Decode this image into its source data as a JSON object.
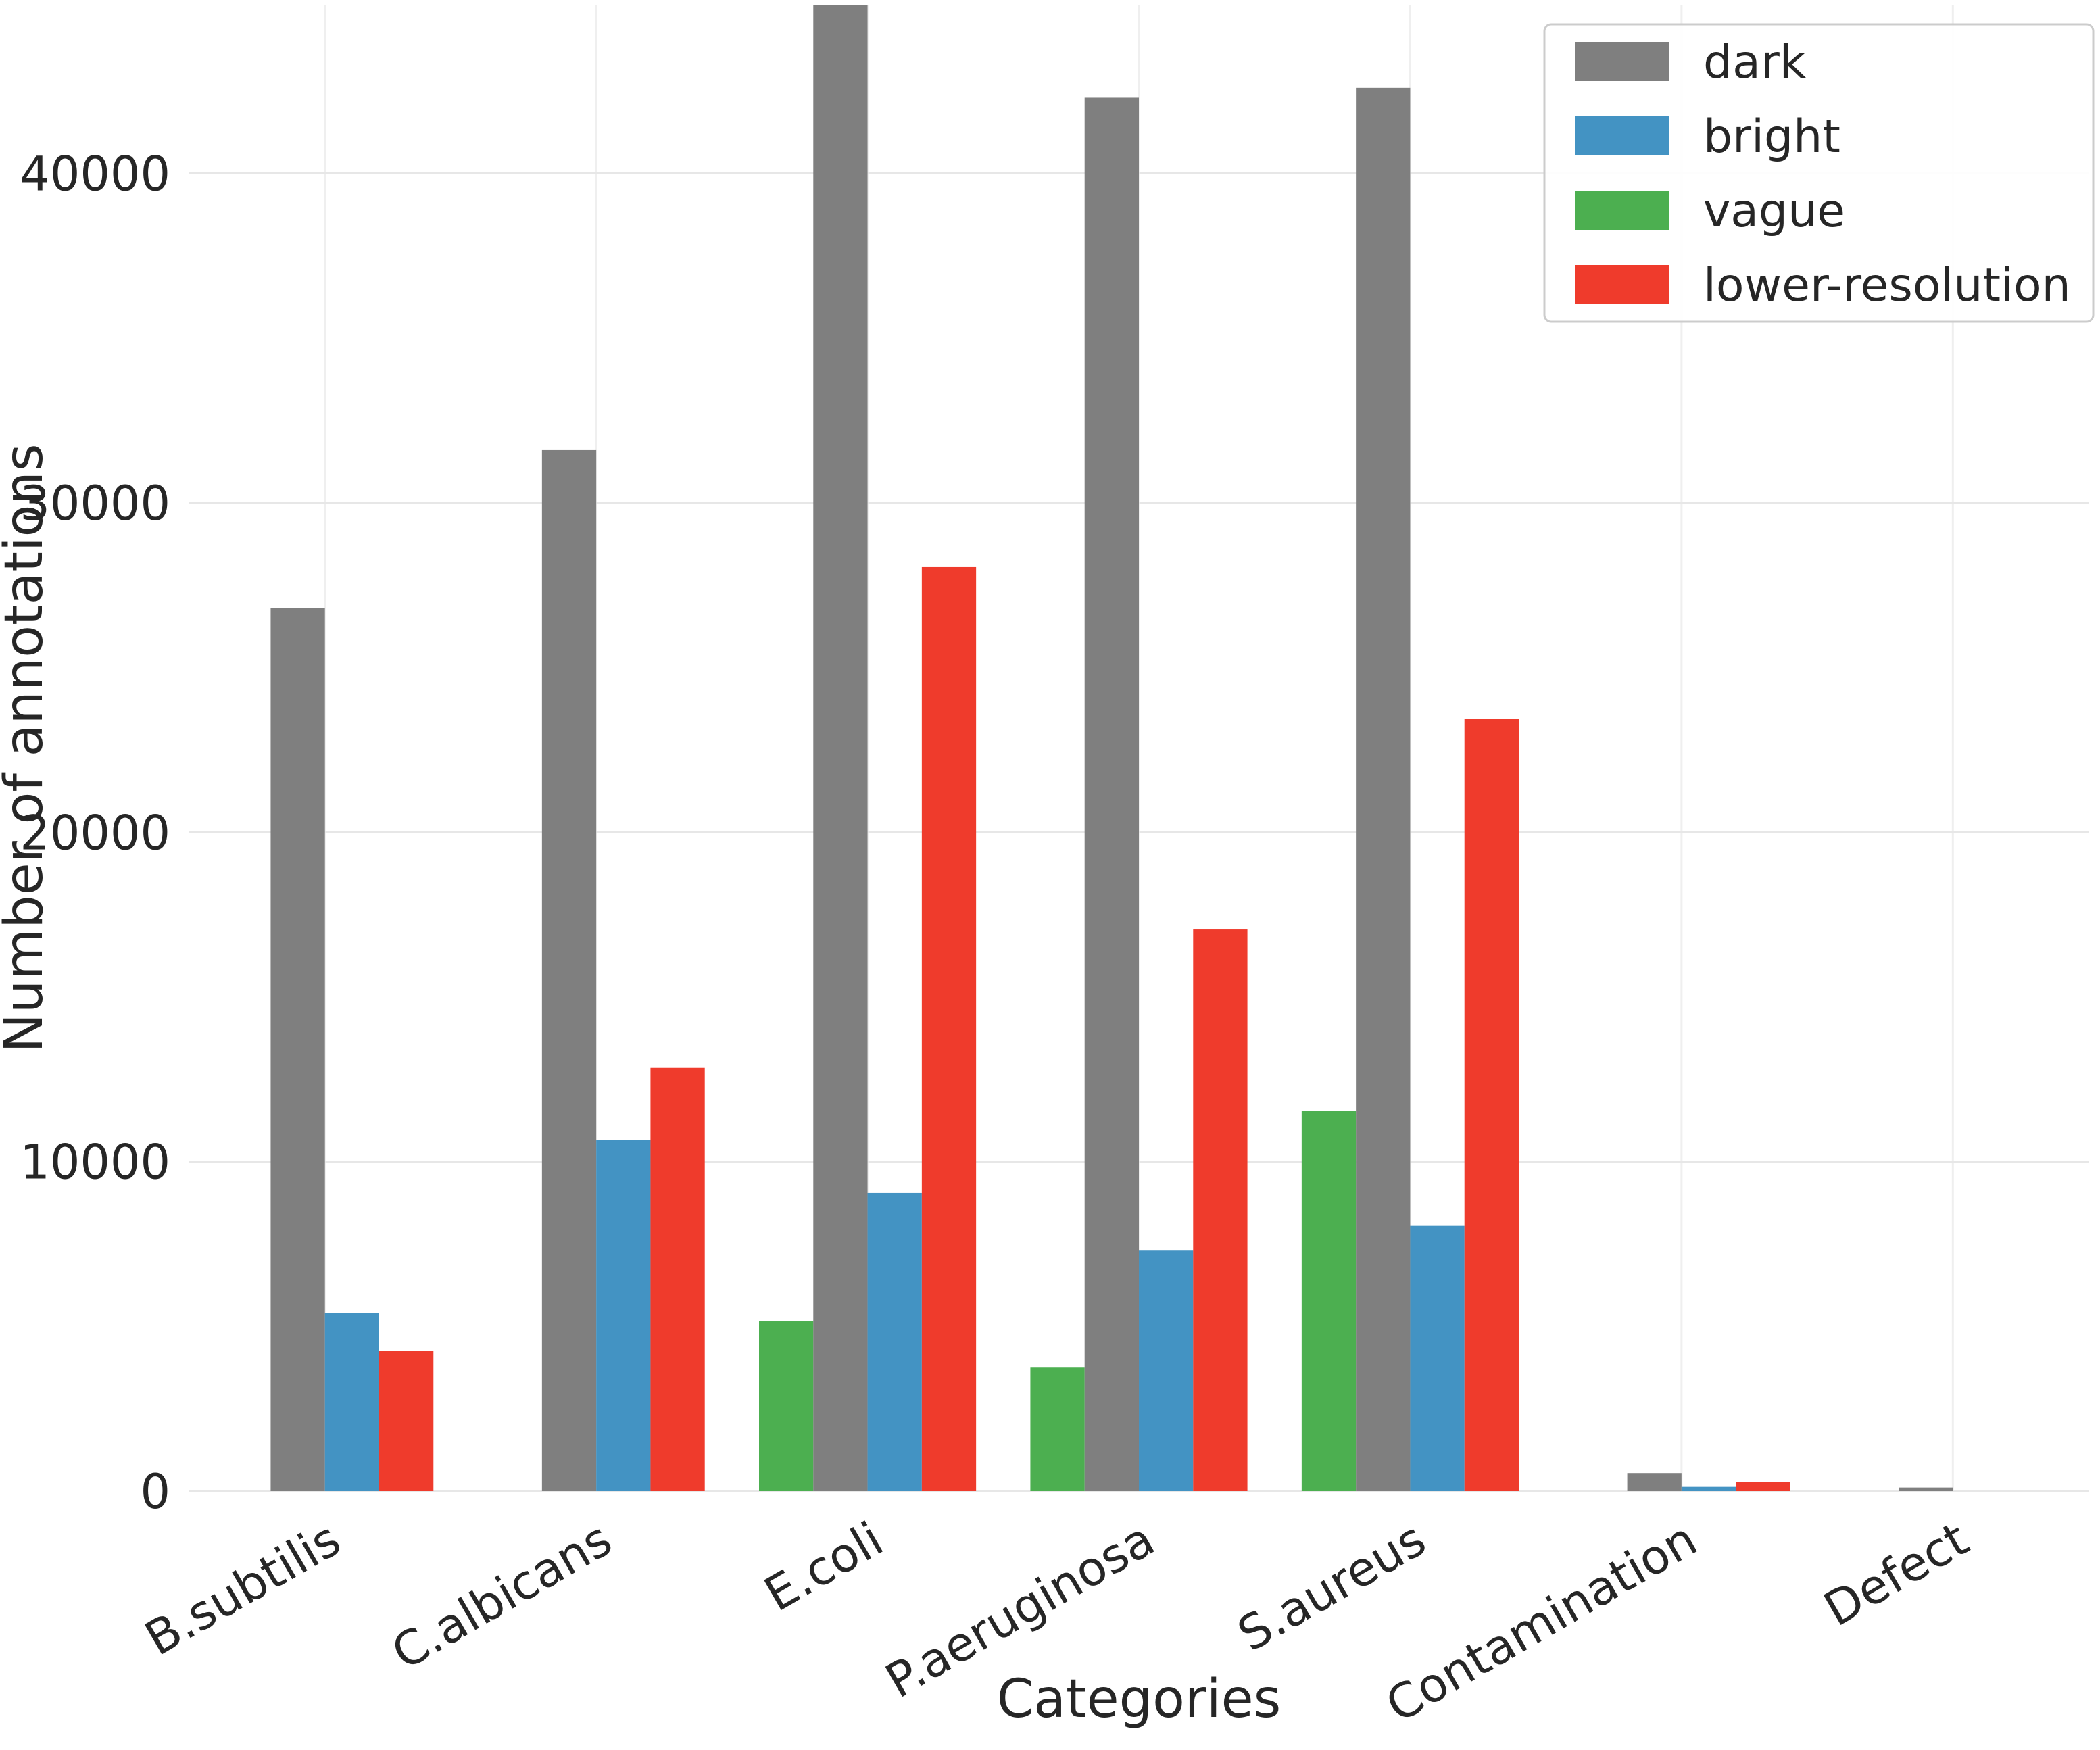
{
  "chart_data": {
    "type": "bar",
    "title": "",
    "xlabel": "Categories",
    "ylabel": "Number of annotations",
    "categories": [
      "B.subtilis",
      "C.albicans",
      "E.coli",
      "P.aeruginosa",
      "S.aureus",
      "Contamination",
      "Defect"
    ],
    "series": [
      {
        "name": "dark",
        "color": "#7f7f7f",
        "values": [
          26800,
          31600,
          45800,
          42300,
          42600,
          550,
          110
        ]
      },
      {
        "name": "bright",
        "color": "#4393c3",
        "values": [
          5400,
          10650,
          9050,
          7300,
          8050,
          130,
          0
        ]
      },
      {
        "name": "vague",
        "color": "#4caf50",
        "values": [
          0,
          0,
          5150,
          3750,
          11550,
          0,
          0
        ]
      },
      {
        "name": "lower-resolution",
        "color": "#ef3b2c",
        "values": [
          4250,
          12850,
          28050,
          17050,
          23450,
          280,
          0
        ]
      }
    ],
    "bar_visual_order": [
      "vague",
      "dark",
      "bright",
      "lower-resolution"
    ],
    "ylim": [
      0,
      45100
    ],
    "yticks": [
      0,
      10000,
      20000,
      30000,
      40000
    ],
    "grid": true,
    "legend_position": "upper right",
    "xtick_rotation_deg": 30
  }
}
